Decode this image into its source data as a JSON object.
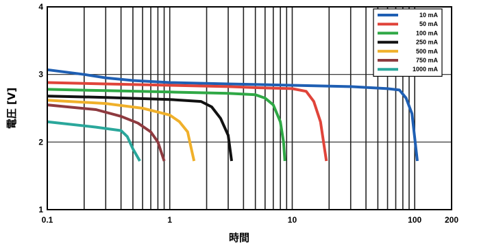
{
  "chart_data": {
    "type": "line",
    "title": "",
    "xlabel": "時間",
    "ylabel": "電圧 [V]",
    "x_scale": "log",
    "xlim": [
      0.1,
      200
    ],
    "ylim": [
      1,
      4
    ],
    "grid": true,
    "legend_position": "top-right",
    "x_ticks": [
      {
        "value": 0.1,
        "label": "0.1"
      },
      {
        "value": 1,
        "label": "1"
      },
      {
        "value": 10,
        "label": "10"
      },
      {
        "value": 100,
        "label": "100"
      },
      {
        "value": 200,
        "label": "200"
      }
    ],
    "y_ticks": [
      {
        "value": 1,
        "label": "1"
      },
      {
        "value": 2,
        "label": "2"
      },
      {
        "value": 3,
        "label": "3"
      },
      {
        "value": 4,
        "label": "4"
      }
    ],
    "series": [
      {
        "name": "10 mA",
        "color": "#1f5fb3",
        "points": [
          [
            0.1,
            3.07
          ],
          [
            0.2,
            3.0
          ],
          [
            0.3,
            2.95
          ],
          [
            0.5,
            2.91
          ],
          [
            1,
            2.88
          ],
          [
            3,
            2.86
          ],
          [
            10,
            2.84
          ],
          [
            30,
            2.82
          ],
          [
            60,
            2.79
          ],
          [
            75,
            2.77
          ],
          [
            85,
            2.65
          ],
          [
            95,
            2.42
          ],
          [
            105,
            1.72
          ]
        ]
      },
      {
        "name": "50 mA",
        "color": "#e0443a",
        "points": [
          [
            0.1,
            2.88
          ],
          [
            0.3,
            2.86
          ],
          [
            1,
            2.84
          ],
          [
            3,
            2.82
          ],
          [
            6,
            2.8
          ],
          [
            10,
            2.79
          ],
          [
            13,
            2.75
          ],
          [
            15,
            2.6
          ],
          [
            17,
            2.3
          ],
          [
            19,
            1.72
          ]
        ]
      },
      {
        "name": "100 mA",
        "color": "#2fa845",
        "points": [
          [
            0.1,
            2.78
          ],
          [
            0.3,
            2.76
          ],
          [
            1,
            2.74
          ],
          [
            3,
            2.72
          ],
          [
            5,
            2.7
          ],
          [
            6,
            2.65
          ],
          [
            7,
            2.55
          ],
          [
            8,
            2.3
          ],
          [
            8.5,
            2.0
          ],
          [
            8.7,
            1.72
          ]
        ]
      },
      {
        "name": "250 mA",
        "color": "#111111",
        "points": [
          [
            0.1,
            2.68
          ],
          [
            0.3,
            2.66
          ],
          [
            1,
            2.63
          ],
          [
            1.8,
            2.6
          ],
          [
            2.2,
            2.52
          ],
          [
            2.6,
            2.35
          ],
          [
            3.0,
            2.1
          ],
          [
            3.2,
            1.72
          ]
        ]
      },
      {
        "name": "500 mA",
        "color": "#f0b02a",
        "points": [
          [
            0.1,
            2.62
          ],
          [
            0.3,
            2.57
          ],
          [
            0.6,
            2.5
          ],
          [
            1,
            2.4
          ],
          [
            1.2,
            2.3
          ],
          [
            1.4,
            2.15
          ],
          [
            1.5,
            1.9
          ],
          [
            1.58,
            1.72
          ]
        ]
      },
      {
        "name": "750 mA",
        "color": "#8e3a3f",
        "points": [
          [
            0.1,
            2.55
          ],
          [
            0.25,
            2.48
          ],
          [
            0.4,
            2.38
          ],
          [
            0.55,
            2.28
          ],
          [
            0.7,
            2.15
          ],
          [
            0.8,
            2.0
          ],
          [
            0.9,
            1.72
          ]
        ]
      },
      {
        "name": "1000 mA",
        "color": "#2aa79b",
        "points": [
          [
            0.1,
            2.3
          ],
          [
            0.25,
            2.22
          ],
          [
            0.4,
            2.17
          ],
          [
            0.45,
            2.08
          ],
          [
            0.5,
            1.9
          ],
          [
            0.57,
            1.72
          ]
        ]
      }
    ]
  }
}
